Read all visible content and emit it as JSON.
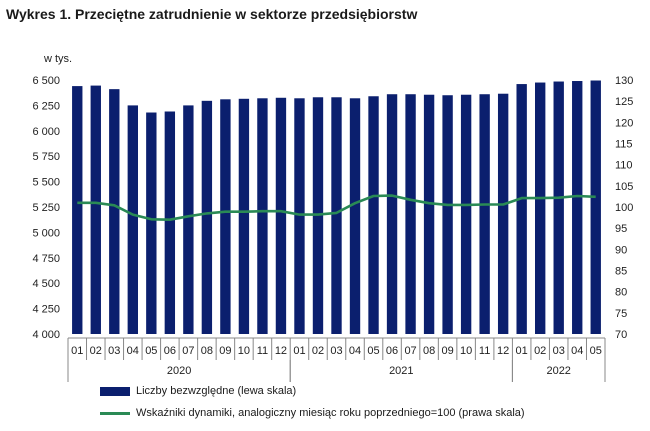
{
  "title": "Wykres 1. Przeciętne zatrudnienie w sektorze przedsiębiorstw",
  "colors": {
    "bars": "#0b1f6e",
    "line": "#2a8a55",
    "axis": "#888888"
  },
  "chart_data": {
    "type": "bar",
    "left_axis_unit": "w tys.",
    "categories": [
      "01",
      "02",
      "03",
      "04",
      "05",
      "06",
      "07",
      "08",
      "09",
      "10",
      "11",
      "12",
      "01",
      "02",
      "03",
      "04",
      "05",
      "06",
      "07",
      "08",
      "09",
      "10",
      "11",
      "12",
      "01",
      "02",
      "03",
      "04",
      "05"
    ],
    "year_groups": [
      {
        "label": "2020",
        "count": 12
      },
      {
        "label": "2021",
        "count": 12
      },
      {
        "label": "2022",
        "count": 5
      }
    ],
    "ylim_left": [
      4000,
      6500
    ],
    "yticks_left": [
      "4 000",
      "4 250",
      "4 500",
      "4 750",
      "5 000",
      "5 250",
      "5 500",
      "5 750",
      "6 000",
      "6 250",
      "6 500"
    ],
    "ylim_right": [
      70,
      130
    ],
    "yticks_right": [
      "70",
      "75",
      "80",
      "85",
      "90",
      "95",
      "100",
      "105",
      "110",
      "115",
      "120",
      "125",
      "130"
    ],
    "series": [
      {
        "name": "Liczby bezwzględne (lewa skala)",
        "type": "bar",
        "axis": "left",
        "values": [
          6440,
          6445,
          6410,
          6250,
          6180,
          6190,
          6250,
          6295,
          6310,
          6315,
          6320,
          6325,
          6320,
          6330,
          6330,
          6320,
          6340,
          6360,
          6360,
          6355,
          6350,
          6355,
          6360,
          6365,
          6460,
          6475,
          6485,
          6490,
          6495
        ]
      },
      {
        "name": "Wskaźniki dynamiki, analogiczny miesiąc roku poprzedniego=100 (prawa skala)",
        "type": "line",
        "axis": "right",
        "values": [
          101.0,
          101.0,
          100.4,
          98.2,
          97.1,
          97.0,
          97.8,
          98.5,
          98.9,
          98.9,
          99.0,
          99.0,
          98.2,
          98.2,
          98.6,
          100.9,
          102.6,
          102.7,
          101.7,
          100.9,
          100.5,
          100.5,
          100.6,
          100.6,
          102.1,
          102.1,
          102.2,
          102.6,
          102.4
        ]
      }
    ]
  }
}
